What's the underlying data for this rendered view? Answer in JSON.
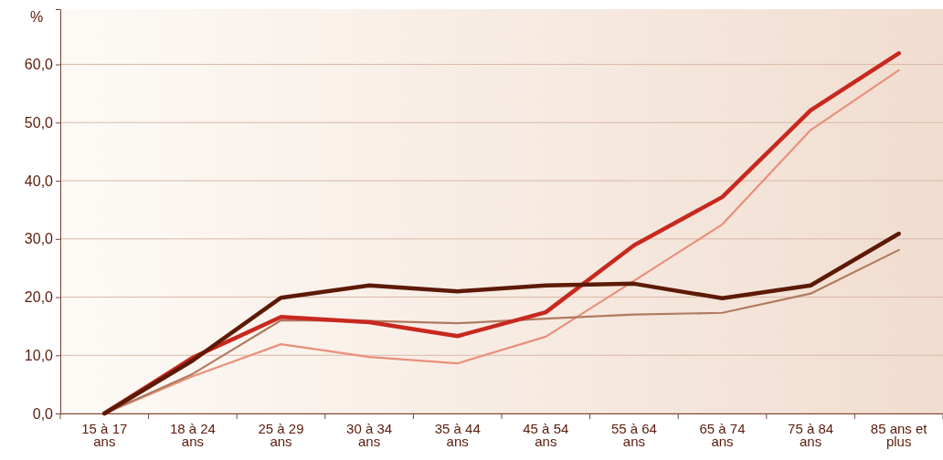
{
  "chart_data": {
    "type": "line",
    "ylabel": "%",
    "categories": [
      "15 à 17 ans",
      "18 à 24 ans",
      "25 à 29 ans",
      "30 à 34 ans",
      "35 à 44 ans",
      "45 à 54 ans",
      "55 à 64 ans",
      "65 à 74 ans",
      "75 à 84 ans",
      "85 ans et plus"
    ],
    "series": [
      {
        "color": "#5c1a05",
        "values": [
          0,
          9.1,
          19.9,
          22.0,
          21.0,
          22.0,
          22.3,
          19.8,
          22.0,
          30.9
        ]
      },
      {
        "color": "#c8281e",
        "values": [
          0,
          9.6,
          16.6,
          15.7,
          13.3,
          17.4,
          28.9,
          37.2,
          52.1,
          61.9
        ]
      },
      {
        "color": "#b07a60",
        "values": [
          0,
          6.8,
          16.0,
          15.9,
          15.5,
          16.3,
          17.0,
          17.3,
          20.6,
          28.1
        ]
      },
      {
        "color": "#e8907a",
        "values": [
          0,
          6.4,
          11.9,
          9.7,
          8.6,
          13.2,
          22.8,
          32.5,
          48.7,
          59.0
        ]
      }
    ],
    "ylim": [
      0,
      69.5
    ],
    "yticks": [
      {
        "value": 0,
        "label": "0,0"
      },
      {
        "value": 10,
        "label": "10,0"
      },
      {
        "value": 20,
        "label": "20,0"
      },
      {
        "value": 30,
        "label": "30,0"
      },
      {
        "value": 40,
        "label": "40,0"
      },
      {
        "value": 50,
        "label": "50,0"
      },
      {
        "value": 60,
        "label": "60,0"
      }
    ],
    "grid": "y",
    "marker": "none",
    "line_style": "solid"
  }
}
